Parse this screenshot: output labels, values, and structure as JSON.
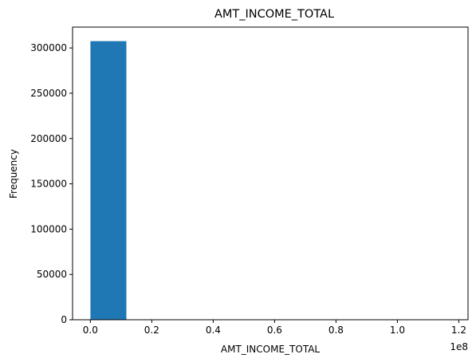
{
  "chart_data": {
    "type": "bar",
    "title": "AMT_INCOME_TOTAL",
    "xlabel": "AMT_INCOME_TOTAL",
    "ylabel": "Frequency",
    "x_offset_label": "1e8",
    "xlim": [
      -5800000,
      123000000
    ],
    "ylim": [
      0,
      323000
    ],
    "x_ticks": [
      {
        "value": 0,
        "label": "0.0"
      },
      {
        "value": 20000000,
        "label": "0.2"
      },
      {
        "value": 40000000,
        "label": "0.4"
      },
      {
        "value": 60000000,
        "label": "0.6"
      },
      {
        "value": 80000000,
        "label": "0.8"
      },
      {
        "value": 100000000,
        "label": "1.0"
      },
      {
        "value": 120000000,
        "label": "1.2"
      }
    ],
    "y_ticks": [
      {
        "value": 0,
        "label": "0"
      },
      {
        "value": 50000,
        "label": "50000"
      },
      {
        "value": 100000,
        "label": "100000"
      },
      {
        "value": 150000,
        "label": "150000"
      },
      {
        "value": 200000,
        "label": "200000"
      },
      {
        "value": 250000,
        "label": "250000"
      },
      {
        "value": 300000,
        "label": "300000"
      }
    ],
    "bins": [
      {
        "start": 25650,
        "end": 11723085,
        "count": 307500
      },
      {
        "start": 11723085,
        "end": 23420520,
        "count": 6
      },
      {
        "start": 23420520,
        "end": 35117955,
        "count": 1
      },
      {
        "start": 35117955,
        "end": 46815390,
        "count": 0
      },
      {
        "start": 46815390,
        "end": 58512825,
        "count": 0
      },
      {
        "start": 58512825,
        "end": 70210260,
        "count": 0
      },
      {
        "start": 70210260,
        "end": 81907695,
        "count": 0
      },
      {
        "start": 81907695,
        "end": 93605130,
        "count": 0
      },
      {
        "start": 93605130,
        "end": 105302565,
        "count": 0
      },
      {
        "start": 105302565,
        "end": 117000000,
        "count": 1
      }
    ],
    "bar_color": "#1f77b4",
    "grid": false,
    "legend": "none"
  }
}
